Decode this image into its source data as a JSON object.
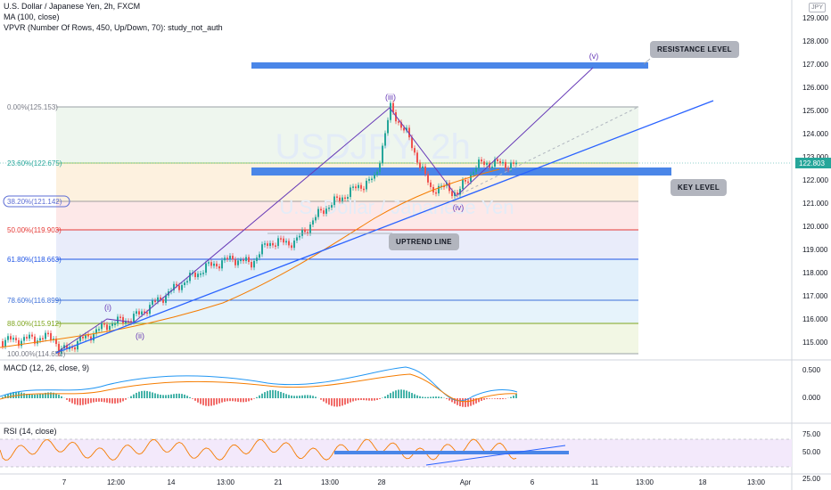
{
  "header": {
    "title": "U.S. Dollar / Japanese Yen, 2h, FXCM",
    "ma": "MA (100, close)",
    "vpvr": "VPVR (Number Of Rows, 450, Up/Down, 70): study_not_auth",
    "symbol_badge": "JPY"
  },
  "watermark": {
    "symbol": "USDJPY, 2h",
    "name": "U.S. Dollar / Japanese Yen"
  },
  "price_axis": {
    "ticks": [
      "129.000",
      "128.000",
      "127.000",
      "126.000",
      "125.000",
      "124.000",
      "123.000",
      "122.000",
      "121.000",
      "120.000",
      "119.000",
      "118.000",
      "117.000",
      "116.000",
      "115.000"
    ],
    "current_price": "122.803",
    "current_color": "#26a69a"
  },
  "fib_labels": [
    {
      "label": "0.00%(125.153)",
      "color": "#787b86"
    },
    {
      "label": "23.60%(122.675)",
      "color": "#26a69a"
    },
    {
      "label": "38.20%(121.142)",
      "color": "#5b6cd4"
    },
    {
      "label": "50.00%(119.903)",
      "color": "#e53935"
    },
    {
      "label": "61.80%(118.663)",
      "color": "#1e53e5"
    },
    {
      "label": "78.60%(116.899)",
      "color": "#3c6fd8"
    },
    {
      "label": "88.00%(115.912)",
      "color": "#7ea51d"
    },
    {
      "label": "100.00%(114.652)",
      "color": "#787b86"
    }
  ],
  "waves": [
    "(i)",
    "(ii)",
    "(iii)",
    "(iv)",
    "(v)"
  ],
  "annotations": {
    "resistance": "RESISTANCE LEVEL",
    "key": "KEY LEVEL",
    "uptrend": "UPTREND LINE"
  },
  "macd": {
    "title": "MACD (12, 26, close, 9)",
    "ticks": [
      "0.500",
      "0.000"
    ]
  },
  "rsi": {
    "title": "RSI (14, close)",
    "ticks": [
      "75.00",
      "50.00",
      "25.00"
    ]
  },
  "time_axis": [
    "7",
    "12:00",
    "14",
    "13:00",
    "21",
    "13:00",
    "28",
    "Apr",
    "6",
    "11",
    "13:00",
    "18",
    "13:00"
  ],
  "colors": {
    "up": "#26a69a",
    "down": "#ef5350",
    "ma": "#f57c00",
    "trend": "#2962ff",
    "wave": "#673ab7",
    "zone": "#4a86e8"
  }
}
